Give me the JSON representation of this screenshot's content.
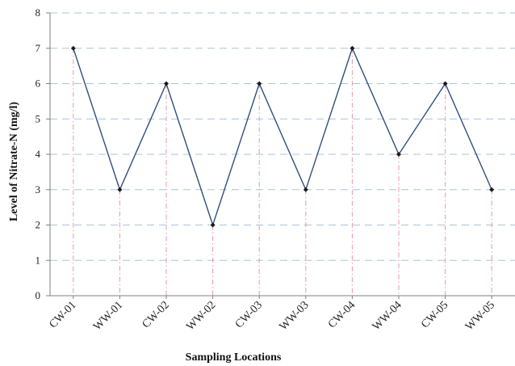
{
  "chart_data": {
    "type": "line",
    "title": "",
    "xlabel": "Sampling Locations",
    "ylabel": "Level of Nitrate-N (mg/l)",
    "categories": [
      "CW-01",
      "WW-01",
      "CW-02",
      "WW-02",
      "CW-03",
      "WW-03",
      "CW-04",
      "WW-04",
      "CW-05",
      "WW-05"
    ],
    "series": [
      {
        "values": [
          7,
          3,
          6,
          2,
          6,
          3,
          7,
          4,
          6,
          3
        ]
      }
    ],
    "ylim": [
      0,
      8
    ],
    "yticks": [
      "0",
      "1",
      "2",
      "3",
      "4",
      "5",
      "6",
      "7",
      "8"
    ],
    "grid": true,
    "drop_lines": true,
    "colors": {
      "line": "#2f4f7f",
      "marker": "#1a1a1a",
      "grid": "#a9c3db",
      "drop_line": "#e79aa6",
      "axis": "#7f7f7f"
    }
  }
}
